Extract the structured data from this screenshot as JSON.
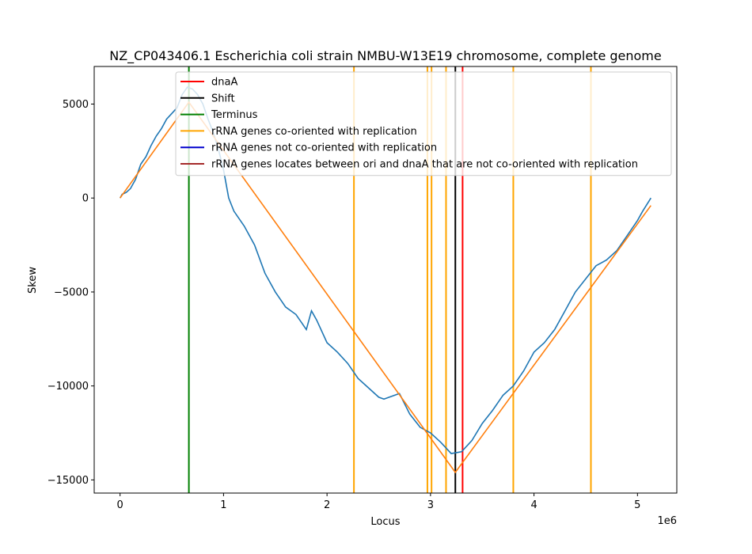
{
  "chart_data": {
    "type": "line",
    "title": "NZ_CP043406.1 Escherichia coli strain NMBU-W13E19 chromosome, complete genome",
    "xlabel": "Locus",
    "ylabel": "Skew",
    "x_offset_label": "1e6",
    "xlim": [
      -250000,
      5380000
    ],
    "ylim": [
      -15700,
      7000
    ],
    "x_ticks": [
      0,
      1000000,
      2000000,
      3000000,
      4000000,
      5000000
    ],
    "x_tick_labels": [
      "0",
      "1",
      "2",
      "3",
      "4",
      "5"
    ],
    "y_ticks": [
      5000,
      0,
      -5000,
      -10000,
      -15000
    ],
    "y_tick_labels": [
      "5000",
      "0",
      "−5000",
      "−10000",
      "−15000"
    ],
    "grid": false,
    "legend_position": "top-right",
    "colors": {
      "skew": "#1f77b4",
      "fit": "#ff7f0e",
      "dnaA": "#ff0000",
      "shift": "#000000",
      "terminus": "#008000",
      "rrna_co": "#ffa500",
      "rrna_not_co": "#0000cd",
      "rrna_between": "#a52a2a"
    },
    "legend": [
      {
        "label": "dnaA",
        "color": "#ff0000"
      },
      {
        "label": "Shift",
        "color": "#000000"
      },
      {
        "label": "Terminus",
        "color": "#008000"
      },
      {
        "label": "rRNA genes co-oriented with replication",
        "color": "#ffa500"
      },
      {
        "label": "rRNA genes not co-oriented with replication",
        "color": "#0000cd"
      },
      {
        "label": "rRNA genes locates between ori and dnaA that are not co-oriented with replication",
        "color": "#a52a2a"
      }
    ],
    "vertical_lines": {
      "terminus": [
        665000
      ],
      "dnaA": [
        3310000
      ],
      "shift": [
        3240000
      ],
      "rrna_co": [
        2260000,
        2970000,
        3010000,
        3150000,
        3800000,
        4550000
      ]
    },
    "series": [
      {
        "color": "#1f77b4",
        "x": [
          0,
          20000,
          60000,
          100000,
          150000,
          200000,
          250000,
          300000,
          350000,
          400000,
          450000,
          500000,
          550000,
          600000,
          650000,
          700000,
          750000,
          800000,
          850000,
          900000,
          950000,
          1000000,
          1050000,
          1100000,
          1200000,
          1300000,
          1400000,
          1500000,
          1600000,
          1700000,
          1800000,
          1850000,
          1900000,
          2000000,
          2100000,
          2200000,
          2300000,
          2400000,
          2500000,
          2550000,
          2600000,
          2700000,
          2800000,
          2900000,
          3000000,
          3100000,
          3200000,
          3300000,
          3400000,
          3500000,
          3600000,
          3700000,
          3800000,
          3900000,
          4000000,
          4100000,
          4200000,
          4300000,
          4400000,
          4500000,
          4600000,
          4700000,
          4800000,
          4900000,
          5000000,
          5050000,
          5130000
        ],
        "y": [
          0,
          200,
          300,
          500,
          1000,
          1800,
          2200,
          2800,
          3300,
          3700,
          4200,
          4500,
          4800,
          5500,
          5900,
          5800,
          5500,
          5000,
          4200,
          3500,
          2600,
          1500,
          0,
          -700,
          -1500,
          -2500,
          -4000,
          -5000,
          -5800,
          -6200,
          -7000,
          -6000,
          -6500,
          -7700,
          -8200,
          -8800,
          -9600,
          -10100,
          -10600,
          -10700,
          -10600,
          -10400,
          -11500,
          -12200,
          -12500,
          -13000,
          -13600,
          -13500,
          -12900,
          -12000,
          -11300,
          -10500,
          -10000,
          -9200,
          -8200,
          -7700,
          -7000,
          -6000,
          -5000,
          -4300,
          -3600,
          -3300,
          -2800,
          -2000,
          -1200,
          -700,
          0
        ]
      },
      {
        "color": "#ff7f0e",
        "x": [
          0,
          665000,
          3240000,
          5130000
        ],
        "y": [
          0,
          5100,
          -14600,
          -400
        ]
      }
    ]
  }
}
